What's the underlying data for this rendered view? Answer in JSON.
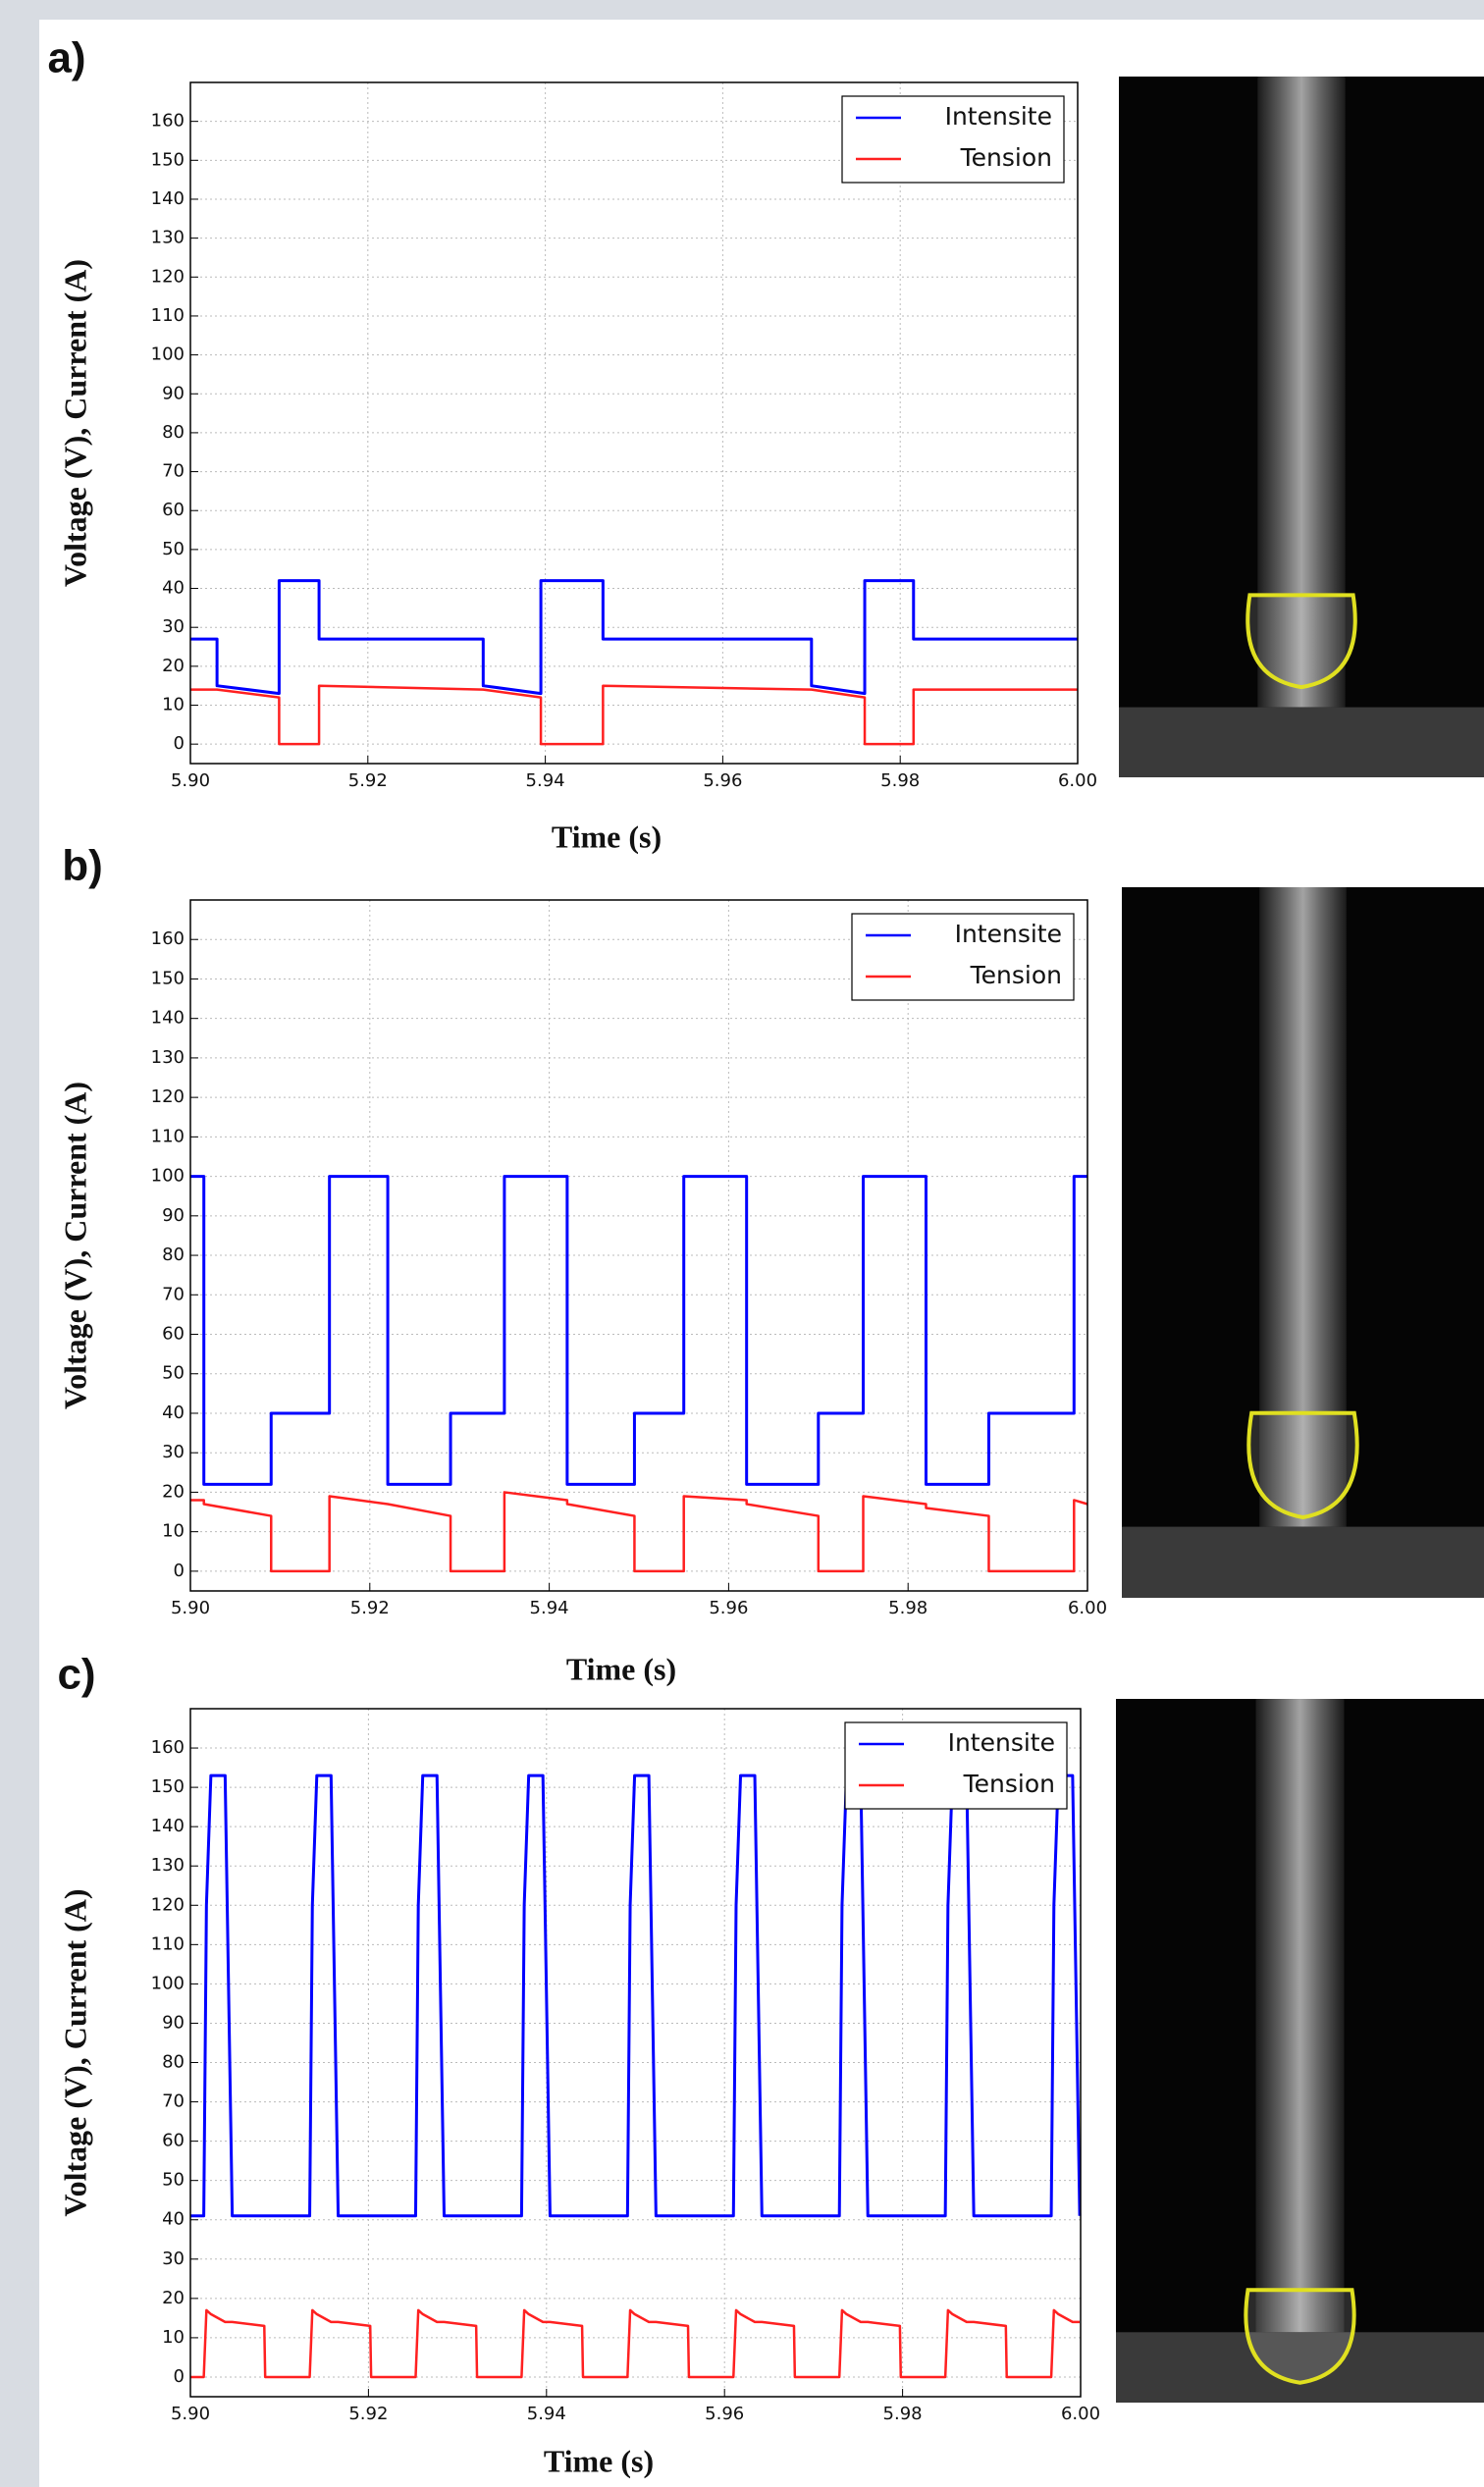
{
  "chart_data": [
    {
      "type": "line",
      "title": "a)",
      "xlabel": "Time (s)",
      "ylabel": "Voltage (V),  Current (A)",
      "x": [
        5.9,
        5.903,
        5.903,
        5.91,
        5.91,
        5.9145,
        5.9145,
        5.933,
        5.933,
        5.9395,
        5.9395,
        5.9465,
        5.9465,
        5.97,
        5.97,
        5.976,
        5.976,
        5.9815,
        5.9815,
        6.0
      ],
      "series": [
        {
          "name": "Intensite",
          "color": "#0000ff",
          "values": [
            27,
            27,
            15,
            13,
            42,
            42,
            27,
            27,
            15,
            13,
            42,
            42,
            27,
            27,
            15,
            13,
            42,
            42,
            27,
            27
          ]
        },
        {
          "name": "Tension",
          "color": "#ff2020",
          "values": [
            14,
            14,
            14,
            12,
            0,
            0,
            15,
            14,
            14,
            12,
            0,
            0,
            15,
            14,
            14,
            12,
            0,
            0,
            14,
            14
          ]
        }
      ],
      "xlim": [
        5.9,
        6.0
      ],
      "xticks": [
        {
          "value": 5.9,
          "label": "5.90"
        },
        5.92,
        5.94,
        5.96,
        5.98,
        {
          "value": 6.0,
          "label": "6.00"
        }
      ],
      "ylim": [
        -5,
        170
      ],
      "yticks": [
        0,
        10,
        20,
        30,
        40,
        50,
        60,
        70,
        80,
        90,
        100,
        110,
        120,
        130,
        140,
        150,
        160
      ],
      "grid": true,
      "legend": "upper right"
    },
    {
      "type": "line",
      "title": "b)",
      "xlabel": "Time (s)",
      "ylabel": "Voltage (V),  Current (A)",
      "x": [
        5.9,
        5.9015,
        5.9015,
        5.909,
        5.909,
        5.9155,
        5.9155,
        5.922,
        5.922,
        5.929,
        5.929,
        5.935,
        5.935,
        5.942,
        5.942,
        5.9495,
        5.9495,
        5.955,
        5.955,
        5.962,
        5.962,
        5.97,
        5.97,
        5.975,
        5.975,
        5.982,
        5.982,
        5.989,
        5.989,
        5.9985,
        5.9985,
        6.0
      ],
      "series": [
        {
          "name": "Intensite",
          "color": "#0000ff",
          "values": [
            100,
            100,
            22,
            22,
            40,
            40,
            100,
            100,
            22,
            22,
            40,
            40,
            100,
            100,
            22,
            22,
            40,
            40,
            100,
            100,
            22,
            22,
            40,
            40,
            100,
            100,
            22,
            22,
            40,
            40,
            100,
            100
          ]
        },
        {
          "name": "Tension",
          "color": "#ff2020",
          "values": [
            18,
            18,
            17,
            14,
            0,
            0,
            19,
            17,
            17,
            14,
            0,
            0,
            20,
            18,
            17,
            14,
            0,
            0,
            19,
            18,
            17,
            14,
            0,
            0,
            19,
            17,
            16,
            14,
            0,
            0,
            18,
            17
          ]
        }
      ],
      "xlim": [
        5.9,
        6.0
      ],
      "xticks": [
        {
          "value": 5.9,
          "label": "5.90"
        },
        5.92,
        5.94,
        5.96,
        5.98,
        {
          "value": 6.0,
          "label": "6.00"
        }
      ],
      "ylim": [
        -5,
        170
      ],
      "yticks": [
        0,
        10,
        20,
        30,
        40,
        50,
        60,
        70,
        80,
        90,
        100,
        110,
        120,
        130,
        140,
        150,
        160
      ],
      "grid": true,
      "legend": "upper right"
    },
    {
      "type": "line",
      "title": "c)",
      "xlabel": "Time (s)",
      "ylabel": "Voltage (V),  Current (A)",
      "x": [
        5.9,
        5.9015,
        5.9018,
        5.9023,
        5.9039,
        5.9047,
        5.9083,
        5.9084,
        5.9134,
        5.9137,
        5.9142,
        5.9158,
        5.9166,
        5.9202,
        5.9203,
        5.9253,
        5.9256,
        5.9261,
        5.9277,
        5.9285,
        5.9321,
        5.9322,
        5.9372,
        5.9375,
        5.938,
        5.9396,
        5.9404,
        5.944,
        5.9441,
        5.9491,
        5.9494,
        5.9499,
        5.9515,
        5.9523,
        5.9559,
        5.956,
        5.961,
        5.9613,
        5.9618,
        5.9634,
        5.9642,
        5.9678,
        5.9679,
        5.9729,
        5.9732,
        5.9737,
        5.9753,
        5.9761,
        5.9797,
        5.9798,
        5.9848,
        5.9851,
        5.9856,
        5.9872,
        5.988,
        5.9916,
        5.9917,
        5.9967,
        5.997,
        5.9975,
        5.9991,
        5.9999
      ],
      "series": [
        {
          "name": "Intensite",
          "color": "#0000ff",
          "values": [
            41,
            41,
            120,
            153,
            153,
            41,
            41,
            41,
            41,
            120,
            153,
            153,
            41,
            41,
            41,
            41,
            120,
            153,
            153,
            41,
            41,
            41,
            41,
            120,
            153,
            153,
            41,
            41,
            41,
            41,
            120,
            153,
            153,
            41,
            41,
            41,
            41,
            120,
            153,
            153,
            41,
            41,
            41,
            41,
            120,
            153,
            153,
            41,
            41,
            41,
            41,
            120,
            153,
            153,
            41,
            41,
            41,
            41,
            120,
            153,
            153,
            41
          ]
        },
        {
          "name": "Tension",
          "color": "#ff2020",
          "values": [
            0,
            0,
            17,
            16,
            14,
            14,
            13,
            0,
            0,
            17,
            16,
            14,
            14,
            13,
            0,
            0,
            17,
            16,
            14,
            14,
            13,
            0,
            0,
            17,
            16,
            14,
            14,
            13,
            0,
            0,
            17,
            16,
            14,
            14,
            13,
            0,
            0,
            17,
            16,
            14,
            14,
            13,
            0,
            0,
            17,
            16,
            14,
            14,
            13,
            0,
            0,
            17,
            16,
            14,
            14,
            13,
            0,
            0,
            17,
            16,
            14,
            14
          ]
        }
      ],
      "xlim": [
        5.9,
        6.0
      ],
      "xticks": [
        {
          "value": 5.9,
          "label": "5.90"
        },
        5.92,
        5.94,
        5.96,
        5.98,
        {
          "value": 6.0,
          "label": "6.00"
        }
      ],
      "ylim": [
        -5,
        170
      ],
      "yticks": [
        0,
        10,
        20,
        30,
        40,
        50,
        60,
        70,
        80,
        90,
        100,
        110,
        120,
        130,
        140,
        150,
        160
      ],
      "grid": true,
      "legend": "upper right"
    }
  ]
}
